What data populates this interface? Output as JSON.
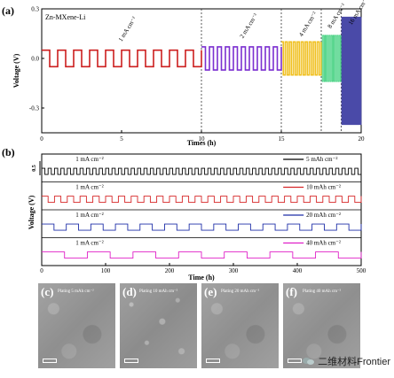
{
  "panel_a": {
    "label": "(a)",
    "sample": "Zn-MXene-Li",
    "xlabel": "Times (h)",
    "ylabel": "Voltage (V)",
    "xticks": [
      "0",
      "5",
      "10",
      "15",
      "20"
    ],
    "yticks": [
      "0.3",
      "0.0",
      "-0.3"
    ],
    "segment_labels": [
      "1 mA cm⁻²",
      "2 mA cm⁻²",
      "4 mA cm⁻²",
      "8 mA cm⁻²",
      "16 mA cm⁻²"
    ]
  },
  "panel_b": {
    "label": "(b)",
    "xlabel": "Time (h)",
    "ylabel": "Voltage (V)",
    "scale_label": "0.5",
    "xticks": [
      "0",
      "100",
      "200",
      "300",
      "400",
      "500"
    ],
    "rows": [
      {
        "current": "1 mA cm⁻²",
        "legend": "5 mAh cm⁻²",
        "color": "#000000"
      },
      {
        "current": "1 mA cm⁻²",
        "legend": "10 mAh cm⁻²",
        "color": "#d62728"
      },
      {
        "current": "1 mA cm⁻²",
        "legend": "20 mAh cm⁻²",
        "color": "#1f2fa8"
      },
      {
        "current": "1 mA cm⁻²",
        "legend": "40 mAh cm⁻²",
        "color": "#e020c8"
      }
    ]
  },
  "sem": [
    {
      "label": "(c)",
      "caption": "Plating 5 mAh cm⁻²"
    },
    {
      "label": "(d)",
      "caption": "Plating 10 mAh cm⁻²"
    },
    {
      "label": "(e)",
      "caption": "Plating 20 mAh cm⁻²"
    },
    {
      "label": "(f)",
      "caption": "Plating 40 mAh cm⁻²"
    }
  ],
  "watermark": "二维材料Frontier",
  "chart_data": [
    {
      "type": "line",
      "title": "",
      "xlabel": "Times (h)",
      "ylabel": "Voltage (V)",
      "xlim": [
        0,
        20
      ],
      "ylim": [
        -0.45,
        0.3
      ],
      "series": [
        {
          "current_density": "1 mA cm⁻²",
          "color": "#cc1f1f",
          "t_start": 0,
          "t_end": 10,
          "amplitude_V": 0.05
        },
        {
          "current_density": "2 mA cm⁻²",
          "color": "#7b2fd0",
          "t_start": 10,
          "t_end": 15,
          "amplitude_V": 0.07
        },
        {
          "current_density": "4 mA cm⁻²",
          "color": "#f0c020",
          "t_start": 15,
          "t_end": 17.5,
          "amplitude_V": 0.1
        },
        {
          "current_density": "8 mA cm⁻²",
          "color": "#2ecc71",
          "t_start": 17.5,
          "t_end": 18.75,
          "amplitude_V": 0.14
        },
        {
          "current_density": "16 mA cm⁻²",
          "color": "#4a4aa8",
          "t_start": 18.75,
          "t_end": 20,
          "amplitude_V": 0.25
        }
      ],
      "dividers": [
        10,
        15,
        17.5,
        18.75
      ]
    },
    {
      "type": "line",
      "title": "",
      "xlabel": "Time (h)",
      "ylabel": "Voltage (V)",
      "xlim": [
        0,
        500
      ],
      "series": [
        {
          "name": "5 mAh cm⁻²",
          "color": "#000000",
          "cycles": 50,
          "amplitude_V": 0.05
        },
        {
          "name": "10 mAh cm⁻²",
          "color": "#d62728",
          "cycles": 25,
          "amplitude_V": 0.05
        },
        {
          "name": "20 mAh cm⁻²",
          "color": "#1f2fa8",
          "cycles": 13,
          "amplitude_V": 0.05
        },
        {
          "name": "40 mAh cm⁻²",
          "color": "#e020c8",
          "cycles": 7,
          "amplitude_V": 0.04
        }
      ]
    }
  ]
}
